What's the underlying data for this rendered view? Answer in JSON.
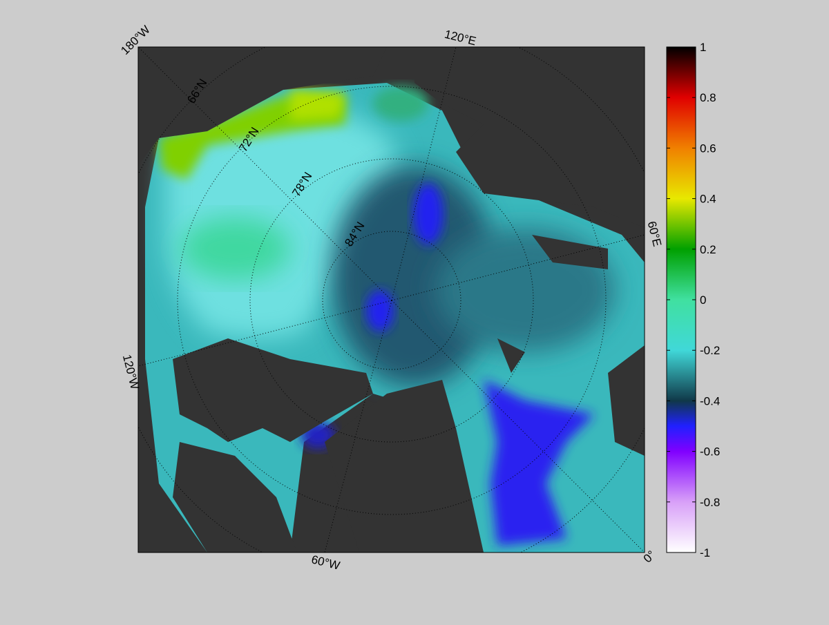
{
  "map": {
    "lon_labels": [
      "180°W",
      "120°E",
      "60°E",
      "0°",
      "60°W",
      "120°W"
    ],
    "lat_labels": [
      "66°N",
      "72°N",
      "78°N",
      "84°N"
    ]
  },
  "colorbar": {
    "range": [
      -1,
      1
    ],
    "ticks": [
      1,
      0.8,
      0.6,
      0.4,
      0.2,
      0,
      -0.2,
      -0.4,
      -0.6,
      -0.8,
      -1
    ]
  }
}
